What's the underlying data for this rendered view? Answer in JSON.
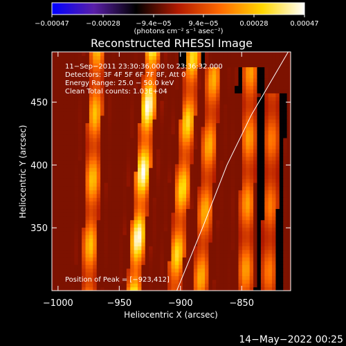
{
  "chart_data": {
    "type": "heatmap",
    "title": "Reconstructed RHESSI Image",
    "xlabel": "Heliocentric X (arcsec)",
    "ylabel": "Heliocentric Y (arcsec)",
    "xlim": [
      -1005,
      -810
    ],
    "ylim": [
      300,
      490
    ],
    "xticks": [
      -1000,
      -950,
      -900,
      -850
    ],
    "xtick_labels": [
      "−1000",
      "−950",
      "−900",
      "−850"
    ],
    "yticks": [
      350,
      400,
      450
    ],
    "ytick_labels": [
      "350",
      "400",
      "450"
    ],
    "colorbar": {
      "range": [
        -0.00047,
        0.00047
      ],
      "tick_labels": [
        "−0.00047",
        "−0.00028",
        "−9.4e−05",
        "9.4e−05",
        "0.00028",
        "0.00047"
      ],
      "unit_label": "(photons cm⁻² s⁻¹ asec⁻²)",
      "colormap": [
        "#0000ff",
        "#5a1fa8",
        "#000000",
        "#b21a00",
        "#ff6a00",
        "#ffd700",
        "#ffffff"
      ]
    },
    "annotations": [
      "11−Sep−2011 23:30:36.000 to 23:36:32.000",
      "Detectors: 3F 4F 5F 6F 7F 8F, Att 0",
      "Energy Range: 25.0 − 50.0 keV",
      "Clean     Total counts: 1.03E+04"
    ],
    "peak_label": "Position of Peak = [−923,412]",
    "peak_position": [
      -923,
      412
    ],
    "limb_curve": [
      [
        -903,
        300
      ],
      [
        -882,
        350
      ],
      [
        -862,
        400
      ],
      [
        -842,
        440
      ],
      [
        -818,
        480
      ],
      [
        -812,
        490
      ]
    ],
    "bright_streaks": [
      {
        "x0": -975,
        "y0": 300,
        "x1": -968,
        "y1": 490,
        "peak": 0.65
      },
      {
        "x0": -938,
        "y0": 300,
        "x1": -923,
        "y1": 490,
        "peak": 1.0
      },
      {
        "x0": -905,
        "y0": 300,
        "x1": -890,
        "y1": 485,
        "peak": 0.75
      },
      {
        "x0": -884,
        "y0": 300,
        "x1": -873,
        "y1": 470,
        "peak": 0.6
      },
      {
        "x0": -847,
        "y0": 300,
        "x1": -843,
        "y1": 470,
        "peak": 0.55
      },
      {
        "x0": -828,
        "y0": 300,
        "x1": -825,
        "y1": 450,
        "peak": 0.45
      }
    ]
  },
  "footer": {
    "timestamp": "14−May−2022 00:25"
  }
}
